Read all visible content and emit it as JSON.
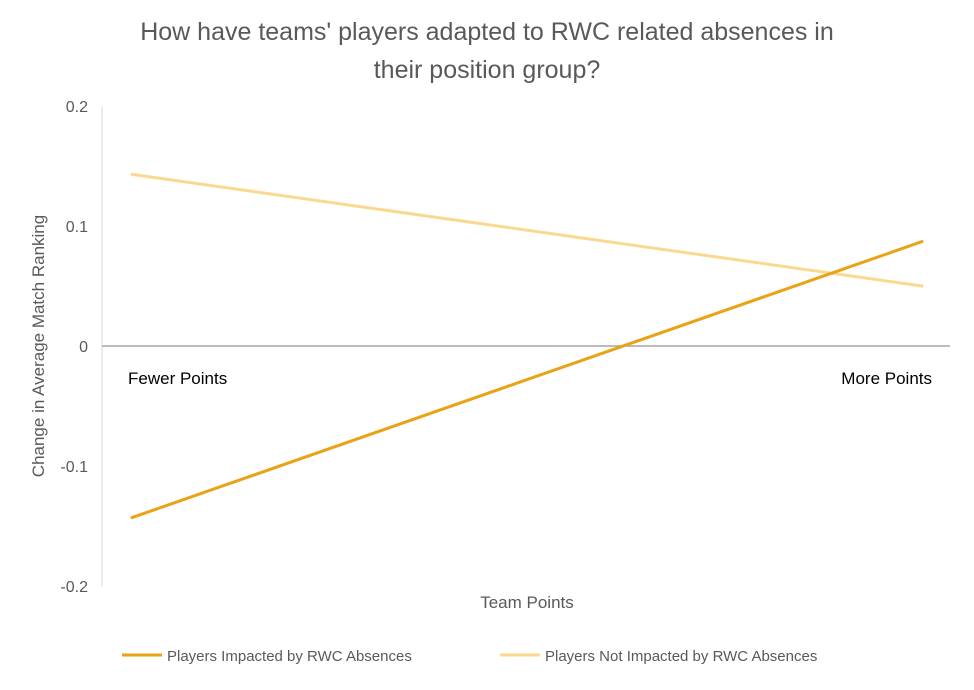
{
  "chart_data": {
    "type": "line",
    "title_lines": [
      "How have teams' players adapted to RWC related absences in",
      "their position group?"
    ],
    "xlabel": "Team Points",
    "ylabel": "Change in Average Match Ranking",
    "ylim": [
      -0.2,
      0.2
    ],
    "yticks": [
      "0.2",
      "0.1",
      "0",
      "-0.1",
      "-0.2"
    ],
    "ytick_values": [
      0.2,
      0.1,
      0,
      -0.1,
      -0.2
    ],
    "annotations": {
      "left": "Fewer Points",
      "right": "More Points"
    },
    "x_categories": [
      "Fewer Points",
      "More Points"
    ],
    "series": [
      {
        "name": "Players Impacted by RWC Absences",
        "color": "#E8A317",
        "values": [
          -0.143,
          0.087
        ]
      },
      {
        "name": "Players Not Impacted by RWC Absences",
        "color": "#F9D98E",
        "values": [
          0.143,
          0.05
        ]
      }
    ],
    "grid": false,
    "legend_position": "bottom"
  }
}
